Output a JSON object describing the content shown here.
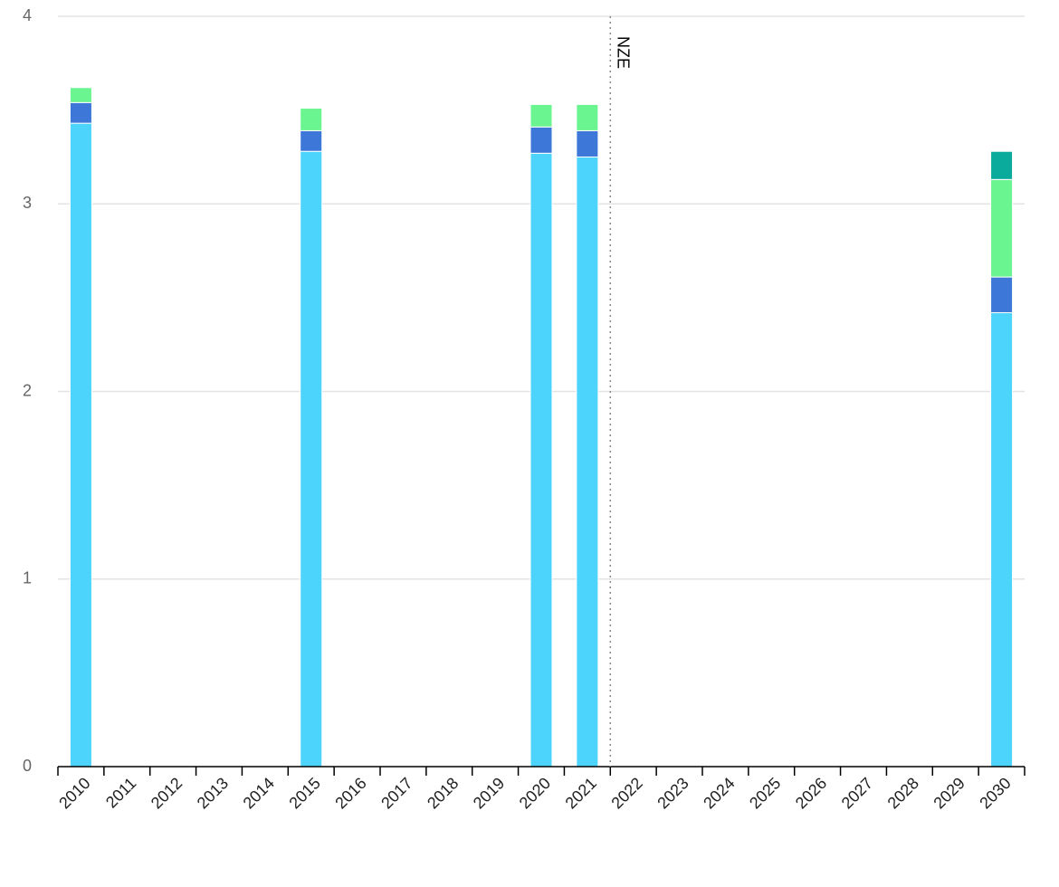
{
  "chart_data": {
    "type": "stacked-bar",
    "categories": [
      "2010",
      "2011",
      "2012",
      "2013",
      "2014",
      "2015",
      "2016",
      "2017",
      "2018",
      "2019",
      "2020",
      "2021",
      "2022",
      "2023",
      "2024",
      "2025",
      "2026",
      "2027",
      "2028",
      "2029",
      "2030"
    ],
    "series": [
      {
        "color": "#4dd4fd",
        "values": [
          3.43,
          null,
          null,
          null,
          null,
          3.28,
          null,
          null,
          null,
          null,
          3.27,
          3.25,
          null,
          null,
          null,
          null,
          null,
          null,
          null,
          null,
          2.42
        ]
      },
      {
        "color": "#3d78d8",
        "values": [
          0.11,
          null,
          null,
          null,
          null,
          0.11,
          null,
          null,
          null,
          null,
          0.14,
          0.14,
          null,
          null,
          null,
          null,
          null,
          null,
          null,
          null,
          0.19
        ]
      },
      {
        "color": "#6af590",
        "values": [
          0.08,
          null,
          null,
          null,
          null,
          0.12,
          null,
          null,
          null,
          null,
          0.12,
          0.14,
          null,
          null,
          null,
          null,
          null,
          null,
          null,
          null,
          0.52
        ]
      },
      {
        "color": "#0aab9c",
        "values": [
          null,
          null,
          null,
          null,
          null,
          null,
          null,
          null,
          null,
          null,
          null,
          null,
          null,
          null,
          null,
          null,
          null,
          null,
          null,
          null,
          0.15
        ]
      }
    ],
    "ylim": [
      0,
      4
    ],
    "yticks": [
      0,
      1,
      2,
      3,
      4
    ],
    "grid": true,
    "annotation": {
      "text": "NZE",
      "x": "2022"
    }
  }
}
